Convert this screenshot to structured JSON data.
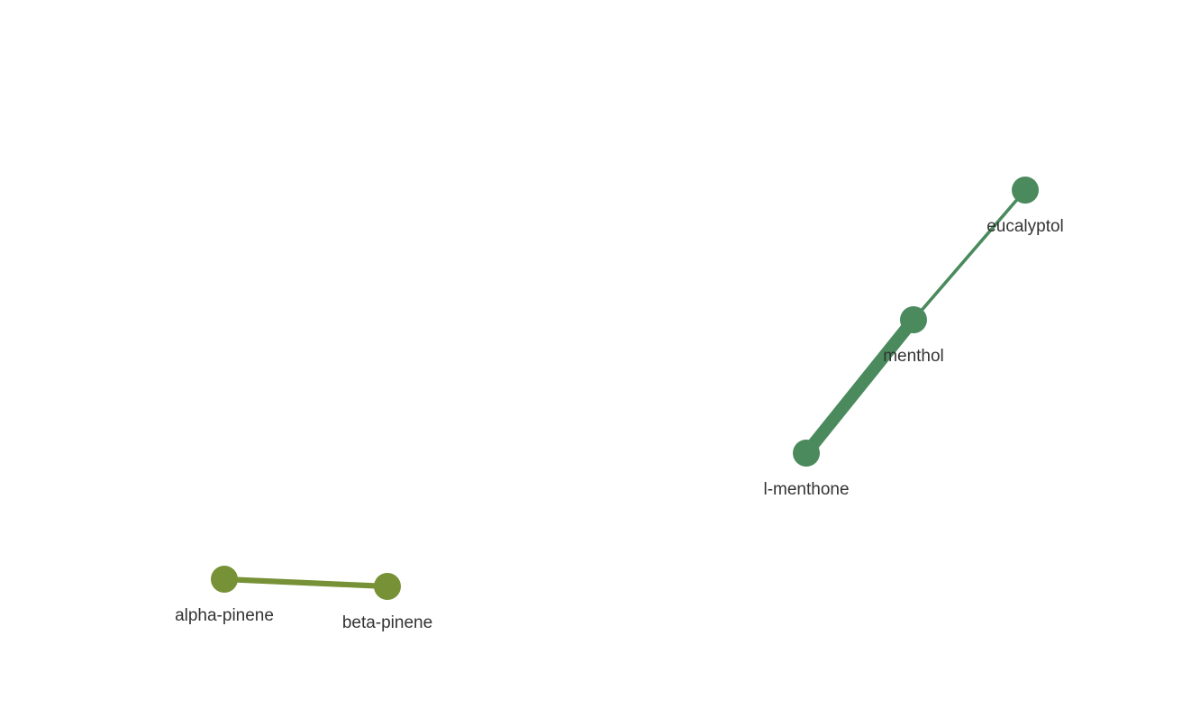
{
  "graph": {
    "nodes": [
      {
        "id": "eucalyptol",
        "label": "eucalyptol",
        "color": "#4a8a5d"
      },
      {
        "id": "menthol",
        "label": "menthol",
        "color": "#4a8a5d"
      },
      {
        "id": "l-menthone",
        "label": "l-menthone",
        "color": "#4a8a5d"
      },
      {
        "id": "alpha-pinene",
        "label": "alpha-pinene",
        "color": "#779136"
      },
      {
        "id": "beta-pinene",
        "label": "beta-pinene",
        "color": "#779136"
      }
    ],
    "edges": [
      {
        "source": "eucalyptol",
        "target": "menthol",
        "weight": 1,
        "color": "#4a8a5d"
      },
      {
        "source": "menthol",
        "target": "l-menthone",
        "weight": 5,
        "color": "#4a8a5d"
      },
      {
        "source": "alpha-pinene",
        "target": "beta-pinene",
        "weight": 2,
        "color": "#779136"
      }
    ]
  }
}
